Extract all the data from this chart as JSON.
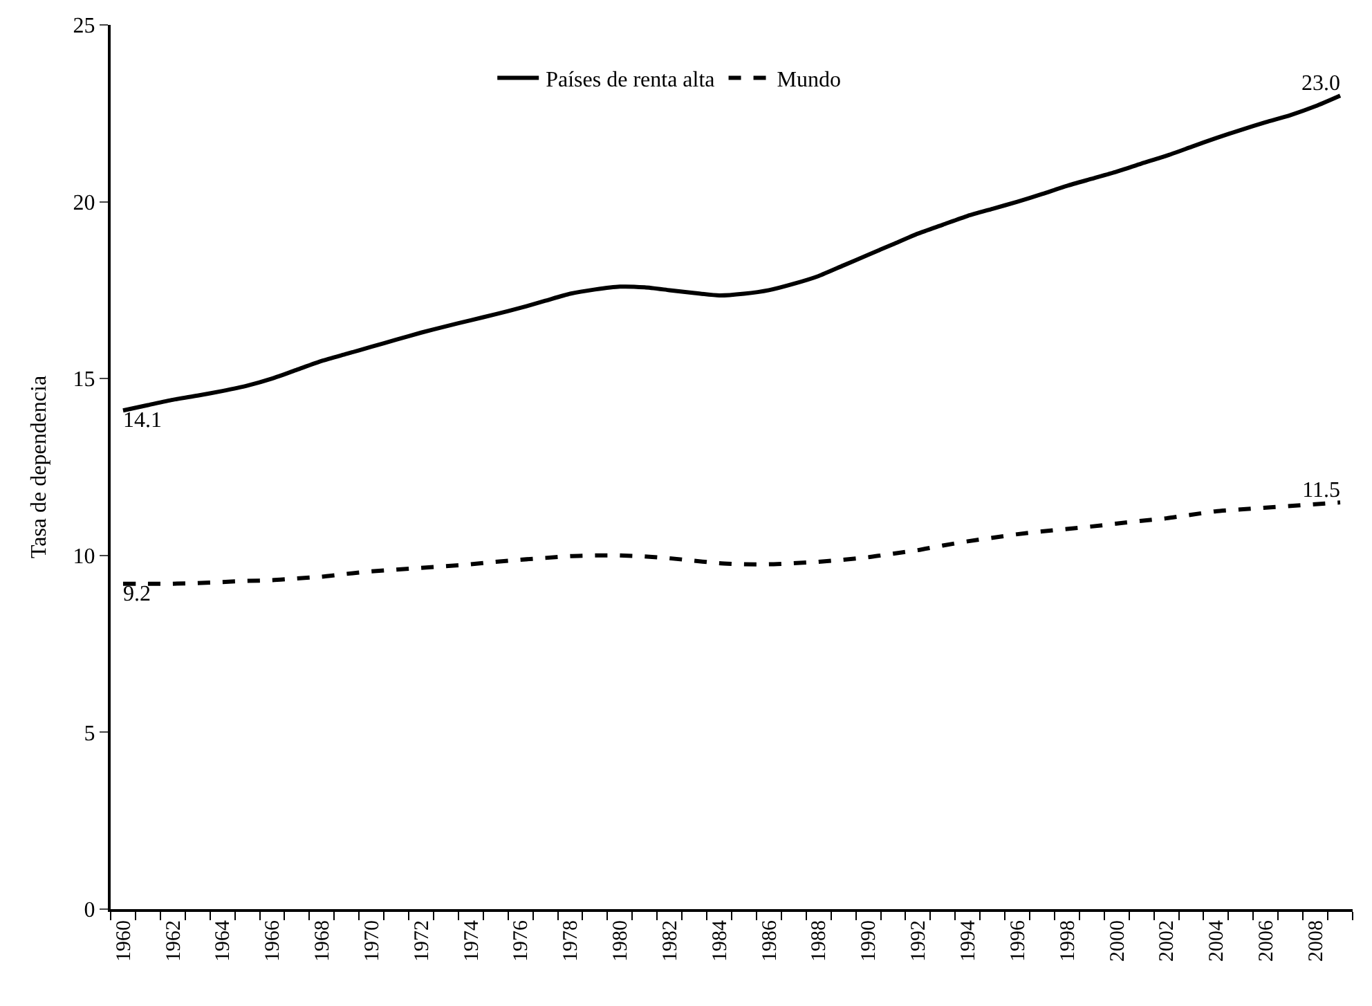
{
  "chart_data": {
    "type": "line",
    "ylabel": "Tasa de dependencia",
    "categories": [
      "1960",
      null,
      "1962",
      null,
      "1964",
      null,
      "1966",
      null,
      "1968",
      null,
      "1970",
      null,
      "1972",
      null,
      "1974",
      null,
      "1976",
      null,
      "1978",
      null,
      "1980",
      null,
      "1982",
      null,
      "1984",
      null,
      "1986",
      null,
      "1988",
      null,
      "1990",
      null,
      "1992",
      null,
      "1994",
      null,
      "1996",
      null,
      "1998",
      null,
      "2000",
      null,
      "2002",
      null,
      "2004",
      null,
      "2006",
      null,
      "2008",
      null
    ],
    "series": [
      {
        "name": "Países de renta alta",
        "color": "#000000",
        "line_style": "solid",
        "values": [
          14.1,
          14.25,
          14.4,
          14.52,
          14.65,
          14.8,
          15.0,
          15.25,
          15.5,
          15.7,
          15.9,
          16.1,
          16.3,
          16.48,
          16.65,
          16.82,
          17.0,
          17.2,
          17.4,
          17.52,
          17.6,
          17.58,
          17.5,
          17.42,
          17.35,
          17.4,
          17.5,
          17.68,
          17.9,
          18.2,
          18.5,
          18.8,
          19.1,
          19.35,
          19.6,
          19.8,
          20.0,
          20.22,
          20.45,
          20.65,
          20.85,
          21.08,
          21.3,
          21.55,
          21.8,
          22.03,
          22.25,
          22.45,
          22.7,
          23.0
        ],
        "value_labels": [
          "14.1",
          null,
          null,
          null,
          null,
          null,
          null,
          null,
          null,
          null,
          null,
          null,
          null,
          null,
          null,
          null,
          null,
          null,
          null,
          null,
          null,
          null,
          null,
          null,
          null,
          null,
          null,
          null,
          null,
          null,
          null,
          null,
          null,
          null,
          null,
          null,
          null,
          null,
          null,
          null,
          null,
          null,
          null,
          null,
          null,
          null,
          null,
          null,
          null,
          "23.0"
        ]
      },
      {
        "name": "Mundo",
        "color": "#000000",
        "line_style": "dashed",
        "values": [
          9.2,
          9.2,
          9.2,
          9.22,
          9.25,
          9.28,
          9.3,
          9.35,
          9.4,
          9.48,
          9.55,
          9.6,
          9.65,
          9.7,
          9.75,
          9.82,
          9.88,
          9.93,
          9.98,
          10.0,
          10.0,
          9.97,
          9.92,
          9.85,
          9.78,
          9.75,
          9.75,
          9.78,
          9.82,
          9.88,
          9.95,
          10.05,
          10.15,
          10.28,
          10.4,
          10.5,
          10.6,
          10.68,
          10.75,
          10.82,
          10.9,
          10.98,
          11.05,
          11.15,
          11.25,
          11.3,
          11.35,
          11.4,
          11.45,
          11.5
        ],
        "value_labels": [
          "9.2",
          null,
          null,
          null,
          null,
          null,
          null,
          null,
          null,
          null,
          null,
          null,
          null,
          null,
          null,
          null,
          null,
          null,
          null,
          null,
          null,
          null,
          null,
          null,
          null,
          null,
          null,
          null,
          null,
          null,
          null,
          null,
          null,
          null,
          null,
          null,
          null,
          null,
          null,
          null,
          null,
          null,
          null,
          null,
          null,
          null,
          null,
          null,
          null,
          "11.5"
        ]
      }
    ],
    "ylim": [
      0,
      25
    ],
    "yticks": [
      0,
      5,
      10,
      15,
      20,
      25
    ],
    "legend": "top"
  }
}
